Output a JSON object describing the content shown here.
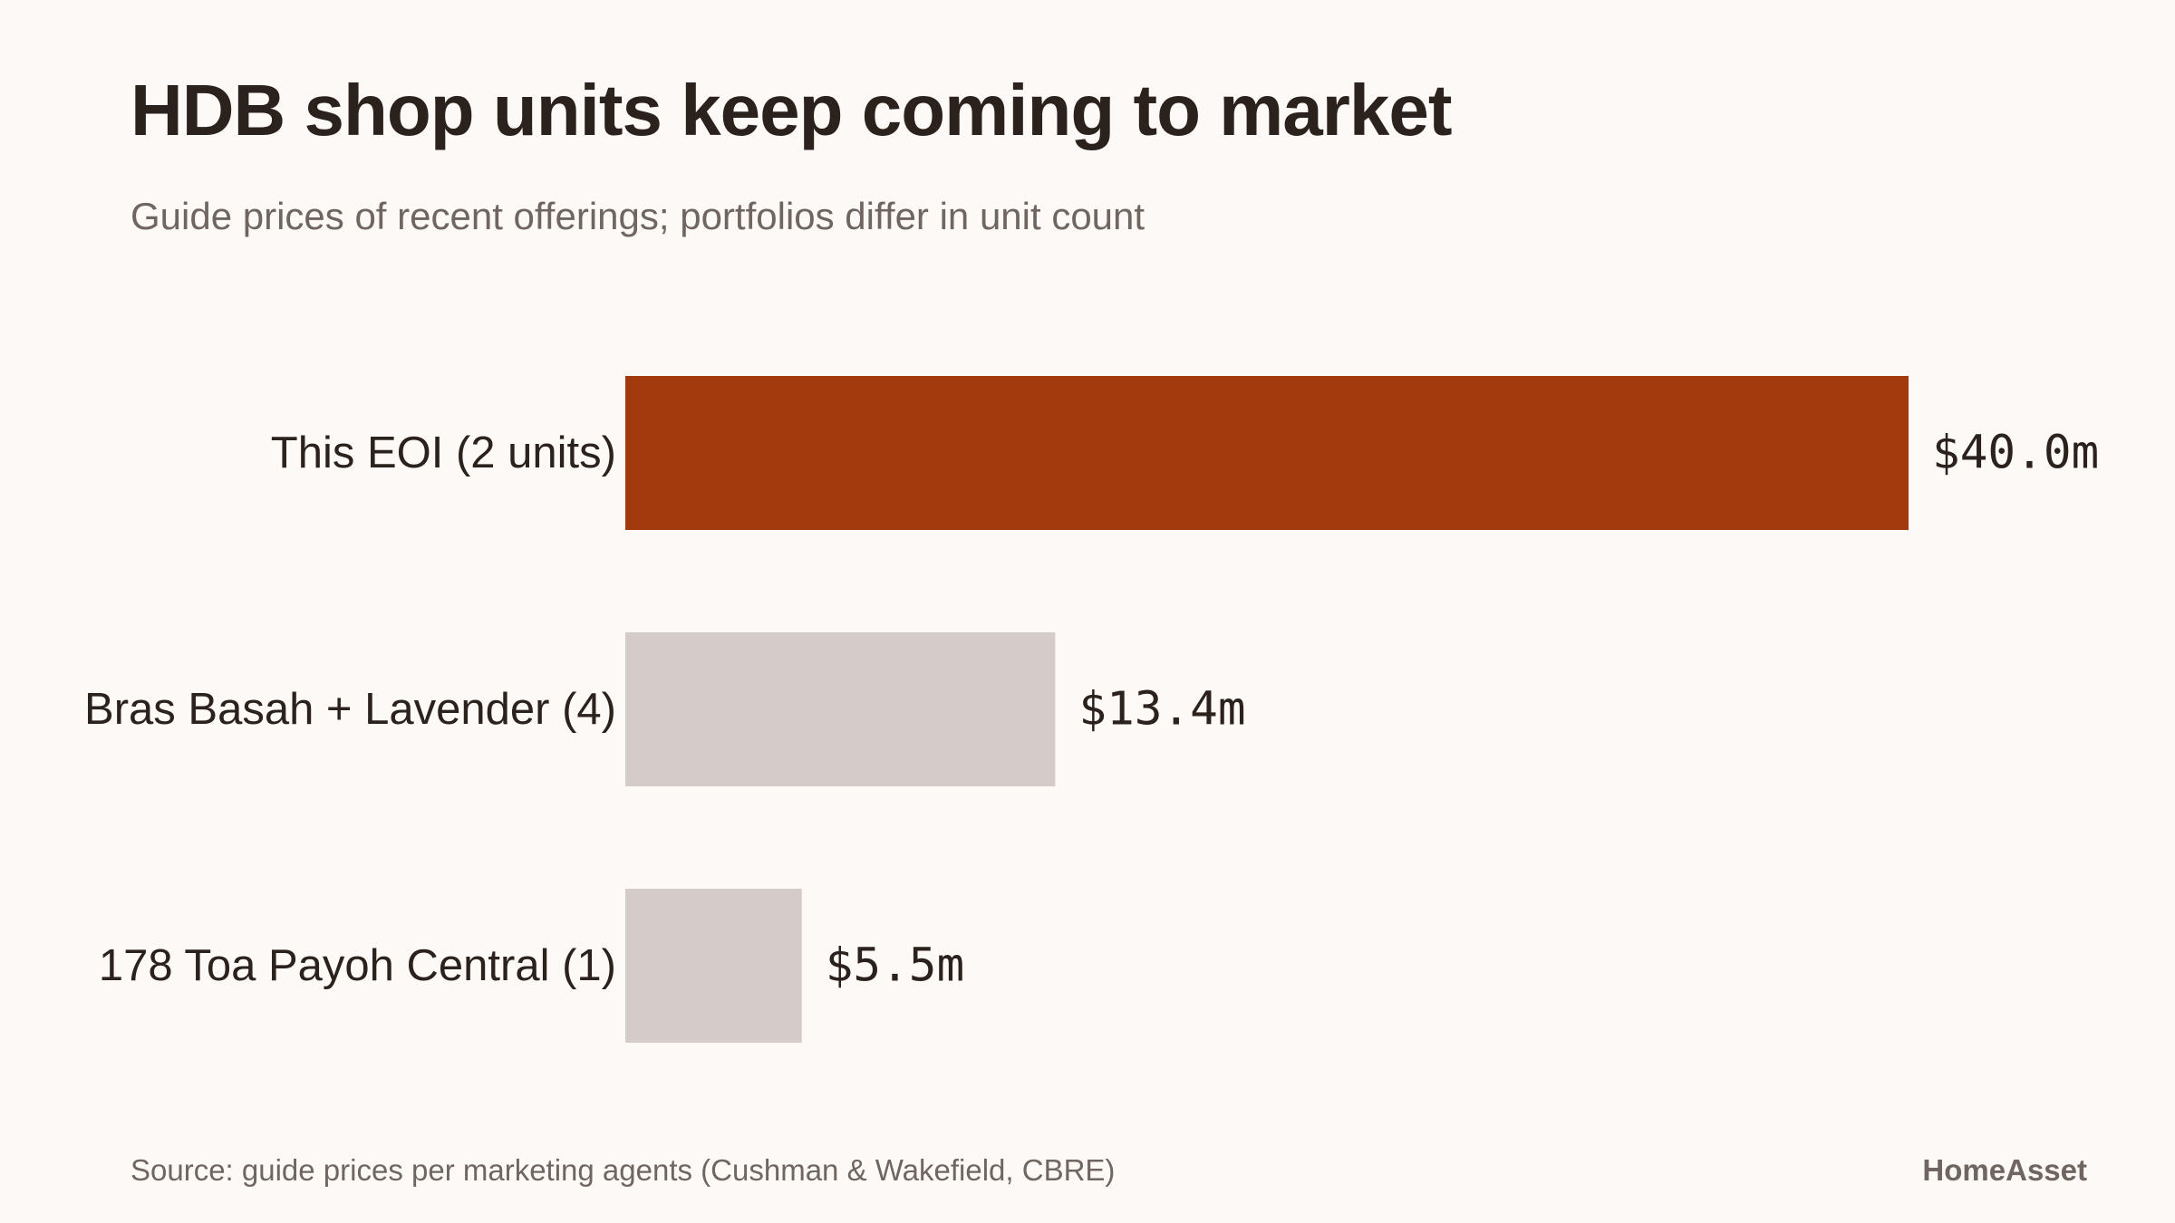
{
  "header": {
    "title": "HDB shop units keep coming to market",
    "subtitle": "Guide prices of recent offerings; portfolios differ in unit count"
  },
  "footer": {
    "source": "Source: guide prices per marketing agents (Cushman & Wakefield, CBRE)",
    "brand": "HomeAsset"
  },
  "colors": {
    "highlight": "#a33a0e",
    "muted": "#d5ccc9",
    "background": "#fdf9f7",
    "text": "#2b211d",
    "secondary_text": "#6f6662"
  },
  "chart_data": {
    "type": "bar",
    "orientation": "horizontal",
    "title": "HDB shop units keep coming to market",
    "subtitle": "Guide prices of recent offerings; portfolios differ in unit count",
    "categories": [
      "This EOI (2 units)",
      "Bras Basah + Lavender (4)",
      "178 Toa Payoh Central (1)"
    ],
    "values": [
      40.0,
      13.4,
      5.5
    ],
    "value_labels": [
      "$40.0m",
      "$13.4m",
      "$5.5m"
    ],
    "highlight_index": 0,
    "xlim": [
      0,
      40.0
    ],
    "grid": false,
    "legend": "none"
  }
}
